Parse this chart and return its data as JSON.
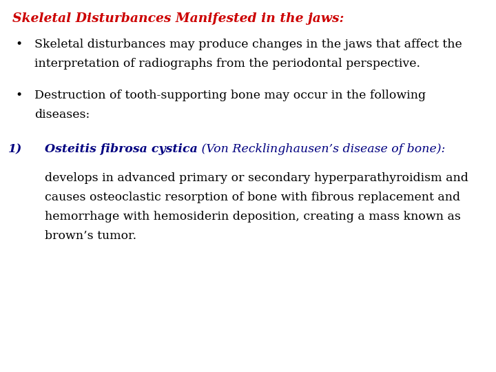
{
  "background_color": "#ffffff",
  "title": "Skeletal Disturbances Manifested in the jaws:",
  "title_color": "#cc0000",
  "title_fontsize": 13.5,
  "bullet1_line1": "Skeletal disturbances may produce changes in the jaws that affect the",
  "bullet1_line2": "interpretation of radiographs from the periodontal perspective.",
  "bullet2_line1": "Destruction of tooth-supporting bone may occur in the following",
  "bullet2_line2": "diseases:",
  "bullet_color": "#000000",
  "bullet_fontsize": 12.5,
  "numbered_label": "1)",
  "numbered_color": "#000080",
  "numbered_bold_italic": "Osteitis fibrosa cystica",
  "numbered_italic": " (Von Recklinghausen’s disease of bone):",
  "numbered_fontsize": 12.5,
  "body_line1": "develops in advanced primary or secondary hyperparathyroidism and",
  "body_line2": "causes osteoclastic resorption of bone with fibrous replacement and",
  "body_line3": "hemorrhage with hemosiderin deposition, creating a mass known as",
  "body_line4": "brown’s tumor.",
  "body_color": "#000000",
  "body_fontsize": 12.5,
  "font_family": "DejaVu Serif"
}
